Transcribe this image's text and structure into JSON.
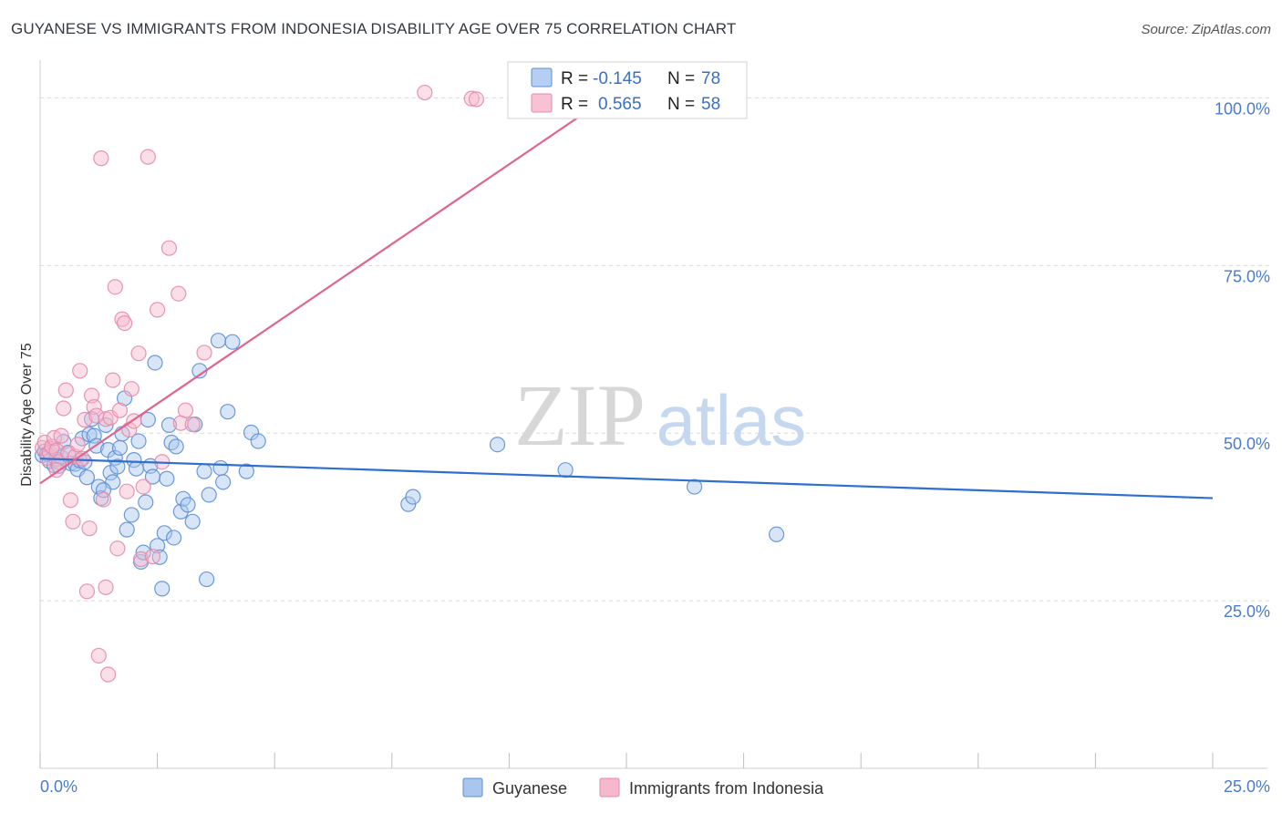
{
  "title": "GUYANESE VS IMMIGRANTS FROM INDONESIA DISABILITY AGE OVER 75 CORRELATION CHART",
  "source": "Source: ZipAtlas.com",
  "watermark": {
    "zip": "ZIP",
    "atlas": "atlas"
  },
  "colors": {
    "blue_fill": "#a9c6ee",
    "blue_stroke": "#5b8fd6",
    "blue_line": "#2f6fcf",
    "pink_fill": "#f6b8cc",
    "pink_stroke": "#e58aa8",
    "pink_line": "#e0658e",
    "grid": "#d9d9d9",
    "tick_label": "#4a7cc9"
  },
  "legend_box": {
    "row1": {
      "r_label": "R =",
      "r_value": "-0.145",
      "n_label": "N =",
      "n_value": "78"
    },
    "row2": {
      "r_label": "R =",
      "r_value": "0.565",
      "n_label": "N =",
      "n_value": "58"
    }
  },
  "bottom_legend": [
    "Guyanese",
    "Immigrants from Indonesia"
  ],
  "chart_data": {
    "type": "scatter",
    "title": "GUYANESE VS IMMIGRANTS FROM INDONESIA DISABILITY AGE OVER 75 CORRELATION CHART",
    "xlabel": "",
    "ylabel": "Disability Age Over 75",
    "xlim": [
      0,
      25
    ],
    "ylim": [
      0,
      104
    ],
    "x_tick_labels": [
      "0.0%",
      "25.0%"
    ],
    "y_ticks": [
      25,
      50,
      75,
      100
    ],
    "y_tick_labels": [
      "25.0%",
      "50.0%",
      "75.0%",
      "100.0%"
    ],
    "grid": true,
    "legend_position": "top-center",
    "series": [
      {
        "name": "Guyanese",
        "color": "#5b8fd6",
        "r": -0.145,
        "n": 78,
        "trend": {
          "x": [
            0,
            25
          ],
          "y": [
            46.2,
            40.3
          ]
        },
        "points": [
          [
            0.05,
            46.7
          ],
          [
            0.1,
            47.3
          ],
          [
            0.15,
            46.9
          ],
          [
            0.2,
            45.8
          ],
          [
            0.3,
            45.2
          ],
          [
            0.35,
            46.1
          ],
          [
            0.45,
            46.4
          ],
          [
            0.5,
            48.7
          ],
          [
            0.6,
            47.1
          ],
          [
            0.65,
            45.5
          ],
          [
            0.75,
            45.4
          ],
          [
            0.8,
            44.6
          ],
          [
            0.85,
            45.9
          ],
          [
            0.9,
            49.2
          ],
          [
            0.95,
            45.7
          ],
          [
            1.0,
            43.4
          ],
          [
            1.05,
            49.8
          ],
          [
            1.1,
            52.1
          ],
          [
            1.15,
            49.6
          ],
          [
            1.2,
            48.1
          ],
          [
            1.25,
            42.0
          ],
          [
            1.3,
            40.3
          ],
          [
            1.4,
            51.2
          ],
          [
            1.45,
            47.5
          ],
          [
            1.5,
            44.1
          ],
          [
            1.55,
            42.7
          ],
          [
            1.6,
            46.3
          ],
          [
            1.65,
            45.0
          ],
          [
            1.7,
            47.8
          ],
          [
            1.75,
            49.9
          ],
          [
            1.8,
            55.2
          ],
          [
            1.85,
            35.6
          ],
          [
            1.95,
            37.8
          ],
          [
            2.0,
            46.0
          ],
          [
            2.05,
            44.7
          ],
          [
            2.1,
            48.8
          ],
          [
            2.15,
            30.8
          ],
          [
            2.2,
            32.2
          ],
          [
            2.3,
            52.0
          ],
          [
            2.35,
            45.1
          ],
          [
            2.4,
            43.5
          ],
          [
            2.45,
            60.5
          ],
          [
            2.5,
            33.2
          ],
          [
            2.55,
            31.5
          ],
          [
            2.6,
            26.8
          ],
          [
            2.65,
            35.1
          ],
          [
            2.7,
            43.2
          ],
          [
            2.75,
            51.2
          ],
          [
            2.8,
            48.6
          ],
          [
            2.9,
            48.0
          ],
          [
            3.0,
            38.3
          ],
          [
            3.05,
            40.2
          ],
          [
            3.15,
            39.3
          ],
          [
            3.3,
            51.3
          ],
          [
            3.4,
            59.3
          ],
          [
            3.5,
            44.3
          ],
          [
            3.55,
            28.2
          ],
          [
            3.6,
            40.8
          ],
          [
            3.8,
            63.8
          ],
          [
            3.85,
            44.8
          ],
          [
            3.9,
            42.7
          ],
          [
            4.0,
            53.2
          ],
          [
            4.1,
            63.6
          ],
          [
            4.4,
            44.3
          ],
          [
            4.5,
            50.1
          ],
          [
            4.65,
            48.8
          ],
          [
            7.85,
            39.4
          ],
          [
            7.95,
            40.5
          ],
          [
            9.75,
            48.3
          ],
          [
            11.2,
            44.5
          ],
          [
            13.95,
            42.0
          ],
          [
            15.7,
            34.9
          ],
          [
            0.25,
            47.7
          ],
          [
            0.4,
            45.1
          ],
          [
            1.35,
            41.5
          ],
          [
            2.25,
            39.7
          ],
          [
            2.85,
            34.4
          ],
          [
            3.25,
            36.8
          ]
        ]
      },
      {
        "name": "Immigrants from Indonesia",
        "color": "#e58aa8",
        "r": 0.565,
        "n": 58,
        "trend": {
          "x": [
            0,
            12.5
          ],
          "y": [
            42.5,
            102.0
          ]
        },
        "points": [
          [
            0.05,
            47.8
          ],
          [
            0.1,
            48.6
          ],
          [
            0.15,
            46.3
          ],
          [
            0.2,
            47.1
          ],
          [
            0.25,
            48.0
          ],
          [
            0.3,
            49.3
          ],
          [
            0.35,
            47.4
          ],
          [
            0.4,
            45.7
          ],
          [
            0.45,
            49.6
          ],
          [
            0.5,
            53.7
          ],
          [
            0.55,
            56.4
          ],
          [
            0.6,
            47.0
          ],
          [
            0.7,
            36.8
          ],
          [
            0.75,
            46.5
          ],
          [
            0.8,
            48.3
          ],
          [
            0.85,
            59.3
          ],
          [
            0.9,
            46.2
          ],
          [
            0.95,
            52.0
          ],
          [
            1.0,
            26.4
          ],
          [
            1.05,
            35.8
          ],
          [
            1.1,
            55.6
          ],
          [
            1.15,
            53.9
          ],
          [
            1.2,
            52.6
          ],
          [
            1.25,
            16.8
          ],
          [
            1.3,
            91.0
          ],
          [
            1.35,
            40.1
          ],
          [
            1.4,
            52.1
          ],
          [
            1.45,
            14.0
          ],
          [
            1.5,
            52.3
          ],
          [
            1.55,
            57.9
          ],
          [
            1.6,
            71.8
          ],
          [
            1.65,
            32.8
          ],
          [
            1.7,
            53.4
          ],
          [
            1.75,
            67.0
          ],
          [
            1.8,
            66.4
          ],
          [
            1.9,
            50.5
          ],
          [
            1.95,
            56.6
          ],
          [
            2.0,
            51.8
          ],
          [
            2.1,
            61.9
          ],
          [
            2.15,
            31.2
          ],
          [
            2.2,
            42.0
          ],
          [
            2.3,
            91.2
          ],
          [
            2.4,
            31.6
          ],
          [
            2.5,
            68.4
          ],
          [
            2.75,
            77.6
          ],
          [
            2.95,
            70.8
          ],
          [
            3.0,
            51.5
          ],
          [
            3.1,
            53.4
          ],
          [
            3.25,
            51.3
          ],
          [
            3.5,
            62.0
          ],
          [
            9.2,
            99.9
          ],
          [
            9.3,
            99.8
          ],
          [
            8.2,
            100.8
          ],
          [
            0.65,
            40.0
          ],
          [
            1.85,
            41.3
          ],
          [
            2.6,
            45.7
          ],
          [
            0.35,
            44.5
          ],
          [
            1.4,
            27.0
          ]
        ]
      }
    ]
  }
}
